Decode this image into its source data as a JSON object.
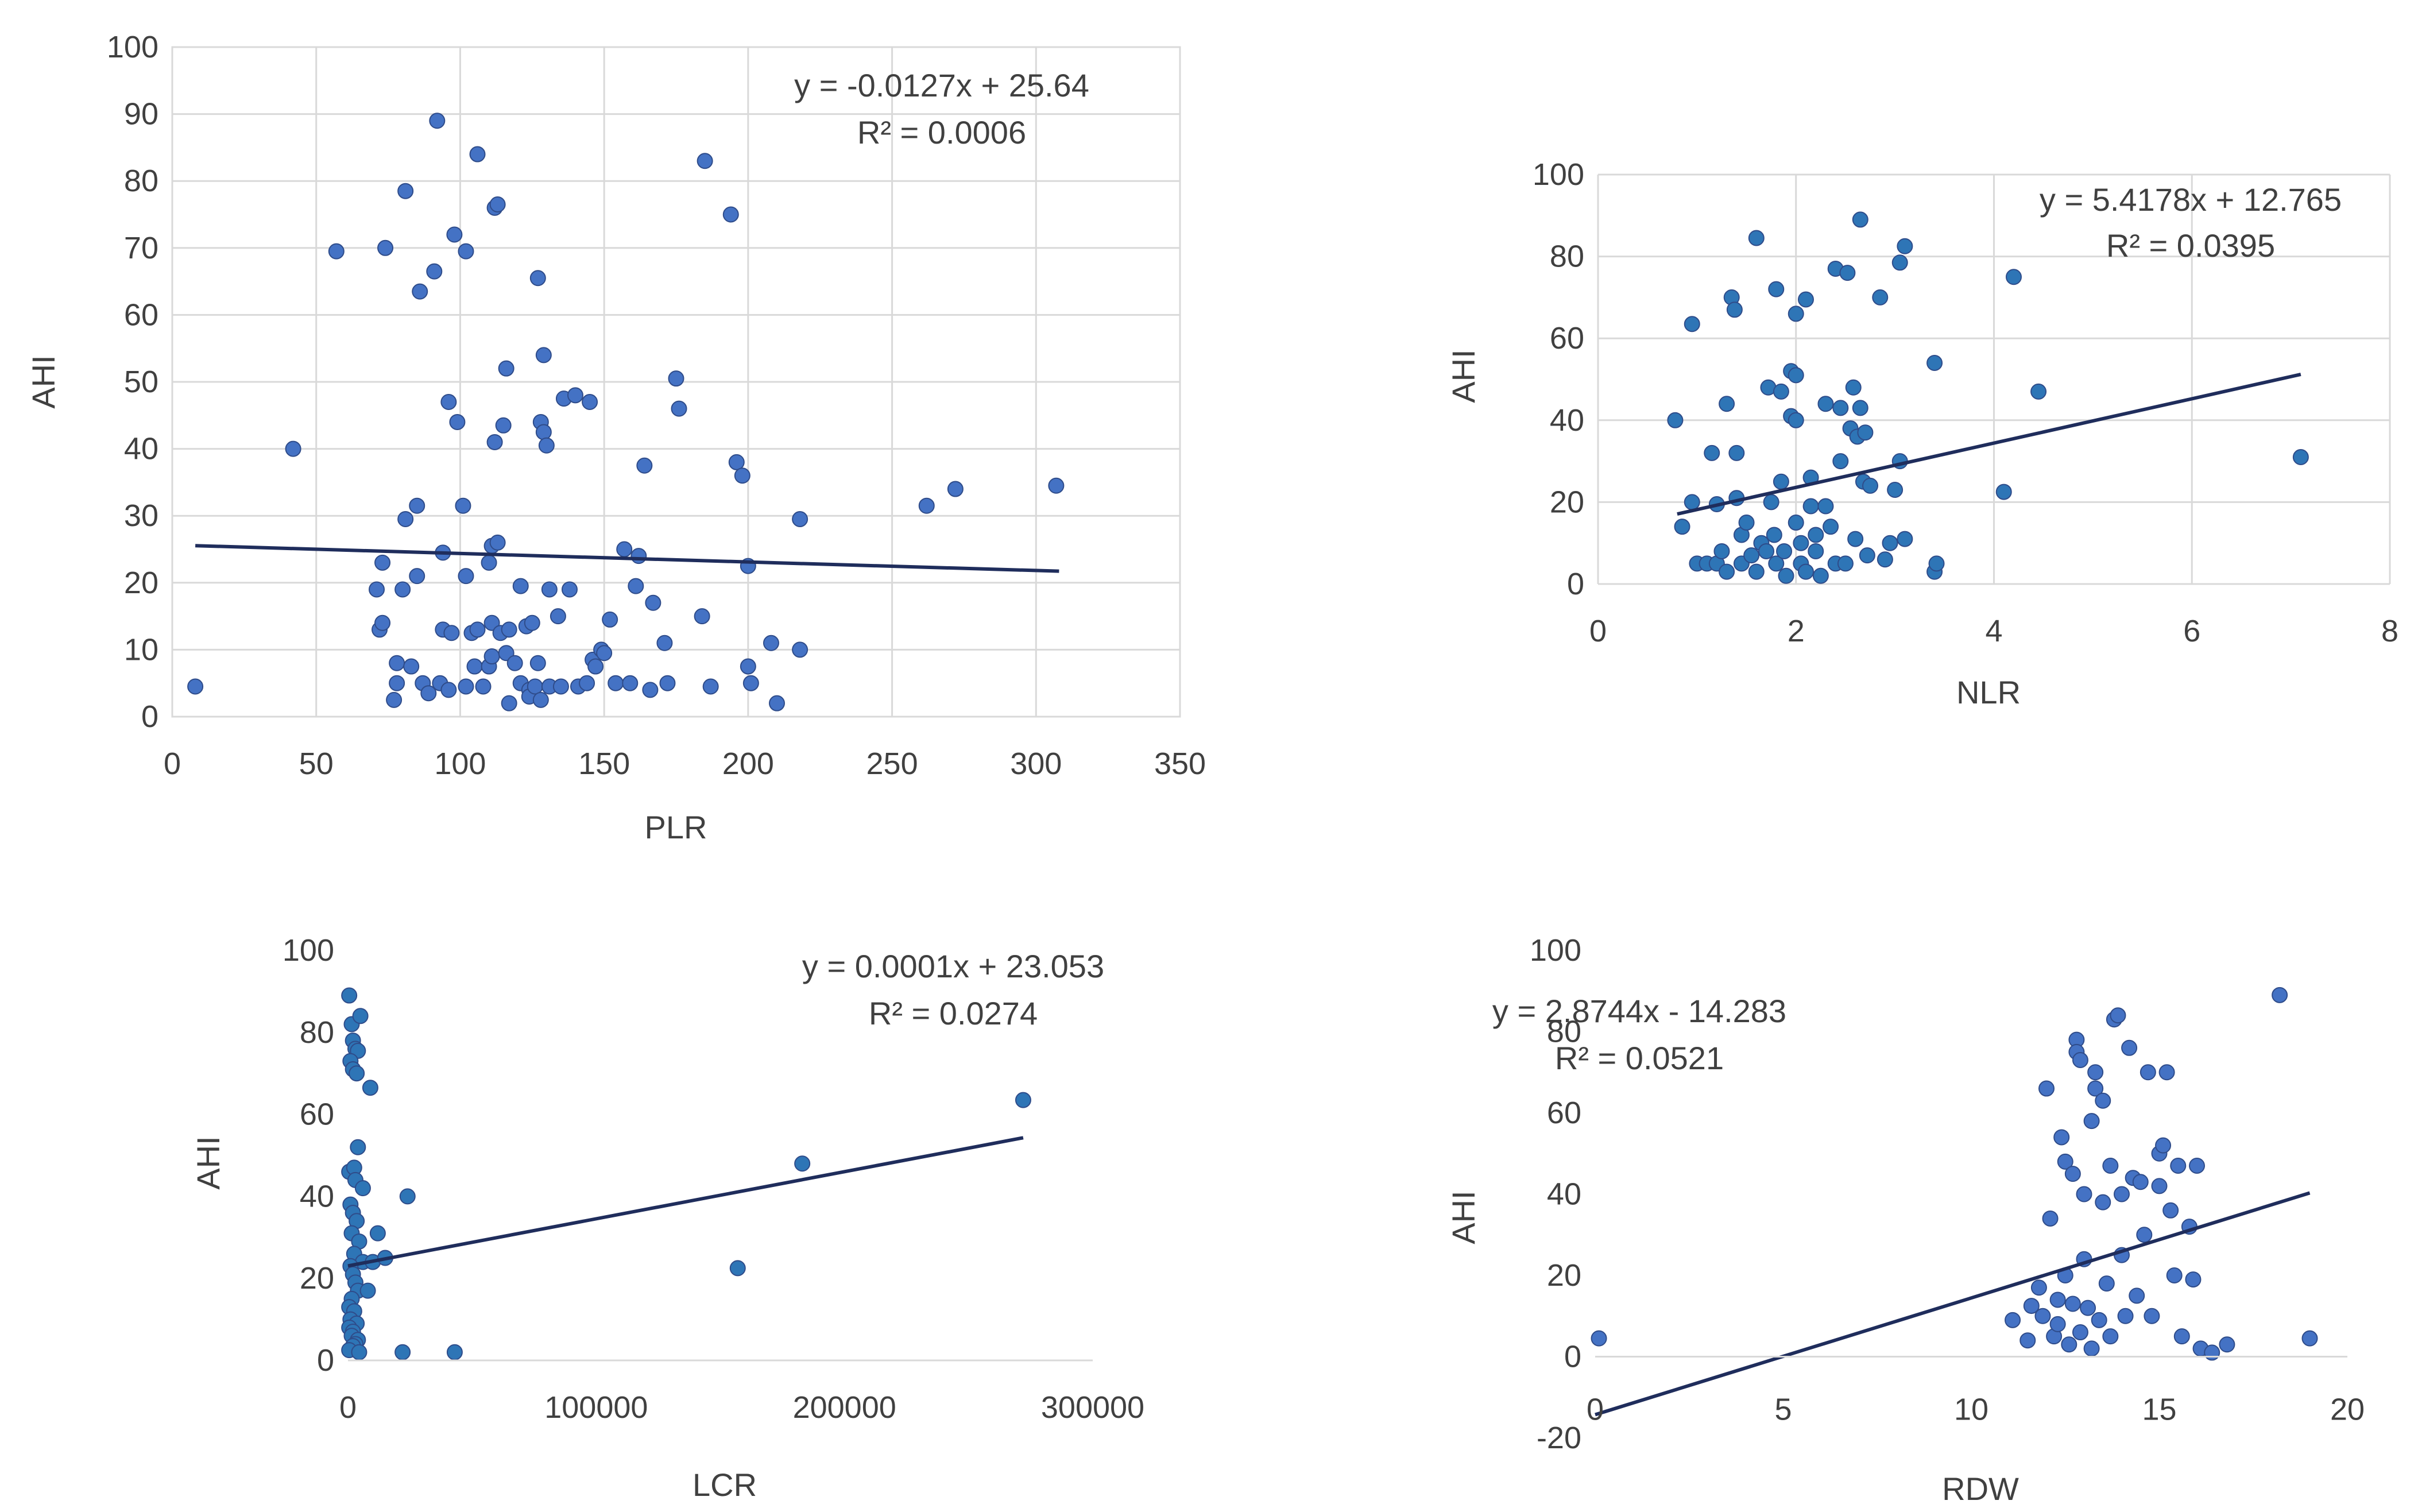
{
  "chart_data": [
    {
      "id": "plr",
      "type": "scatter",
      "xlabel": "PLR",
      "ylabel": "AHI",
      "xlim": [
        0,
        350
      ],
      "ylim": [
        0,
        100
      ],
      "xticks": [
        0,
        50,
        100,
        150,
        200,
        250,
        300,
        350
      ],
      "yticks": [
        0,
        10,
        20,
        30,
        40,
        50,
        60,
        70,
        80,
        90,
        100
      ],
      "grid": true,
      "marker_color": "#4472C4",
      "line_color": "#1F2D5C",
      "equation": "y = -0.0127x + 25.64",
      "r2": "R² = 0.0006",
      "trendline": {
        "x": [
          8,
          308
        ],
        "y": [
          25.54,
          21.73
        ]
      },
      "points": [
        [
          8,
          4.5
        ],
        [
          42,
          40
        ],
        [
          57,
          69.5
        ],
        [
          74,
          70
        ],
        [
          73,
          23
        ],
        [
          71,
          19
        ],
        [
          72,
          13
        ],
        [
          73,
          14
        ],
        [
          77,
          2.5
        ],
        [
          78,
          8
        ],
        [
          78,
          5
        ],
        [
          80,
          19
        ],
        [
          81,
          78.5
        ],
        [
          81,
          29.5
        ],
        [
          83,
          7.5
        ],
        [
          85,
          31.5
        ],
        [
          86,
          63.5
        ],
        [
          85,
          21
        ],
        [
          87,
          5
        ],
        [
          89,
          3.5
        ],
        [
          91,
          66.5
        ],
        [
          92,
          89
        ],
        [
          93,
          5
        ],
        [
          94,
          24.5
        ],
        [
          94,
          13
        ],
        [
          96,
          47
        ],
        [
          96,
          4
        ],
        [
          98,
          72
        ],
        [
          97,
          12.5
        ],
        [
          99,
          44
        ],
        [
          101,
          31.5
        ],
        [
          102,
          69.5
        ],
        [
          102,
          21
        ],
        [
          102,
          4.5
        ],
        [
          104,
          12.5
        ],
        [
          105,
          7.5
        ],
        [
          106,
          84
        ],
        [
          106,
          13
        ],
        [
          108,
          4.5
        ],
        [
          110,
          7.5
        ],
        [
          110,
          23
        ],
        [
          111,
          9
        ],
        [
          111,
          25.5
        ],
        [
          111,
          14
        ],
        [
          112,
          41
        ],
        [
          112,
          76
        ],
        [
          113,
          76.5
        ],
        [
          113,
          26
        ],
        [
          114,
          12.5
        ],
        [
          115,
          43.5
        ],
        [
          116,
          52
        ],
        [
          116,
          9.5
        ],
        [
          117,
          2
        ],
        [
          117,
          13
        ],
        [
          119,
          8
        ],
        [
          121,
          19.5
        ],
        [
          121,
          5
        ],
        [
          123,
          13.5
        ],
        [
          124,
          4
        ],
        [
          124,
          3
        ],
        [
          125,
          14
        ],
        [
          126,
          4.5
        ],
        [
          127,
          65.5
        ],
        [
          127,
          8
        ],
        [
          128,
          2.5
        ],
        [
          128,
          44
        ],
        [
          129,
          42.5
        ],
        [
          130,
          40.5
        ],
        [
          129,
          54
        ],
        [
          131,
          19
        ],
        [
          131,
          4.5
        ],
        [
          134,
          15
        ],
        [
          135,
          4.5
        ],
        [
          136,
          47.5
        ],
        [
          138,
          19
        ],
        [
          140,
          48
        ],
        [
          141,
          4.5
        ],
        [
          144,
          5
        ],
        [
          145,
          47
        ],
        [
          146,
          8.5
        ],
        [
          147,
          7.5
        ],
        [
          149,
          10
        ],
        [
          150,
          9.5
        ],
        [
          152,
          14.5
        ],
        [
          154,
          5
        ],
        [
          157,
          25
        ],
        [
          159,
          5
        ],
        [
          161,
          19.5
        ],
        [
          162,
          24
        ],
        [
          164,
          37.5
        ],
        [
          166,
          4
        ],
        [
          167,
          17
        ],
        [
          171,
          11
        ],
        [
          172,
          5
        ],
        [
          175,
          50.5
        ],
        [
          176,
          46
        ],
        [
          184,
          15
        ],
        [
          185,
          83
        ],
        [
          187,
          4.5
        ],
        [
          194,
          75
        ],
        [
          196,
          38
        ],
        [
          198,
          36
        ],
        [
          200,
          22.5
        ],
        [
          200,
          7.5
        ],
        [
          201,
          5
        ],
        [
          208,
          11
        ],
        [
          210,
          2
        ],
        [
          218,
          29.5
        ],
        [
          218,
          10
        ],
        [
          262,
          31.5
        ],
        [
          272,
          34
        ],
        [
          307,
          34.5
        ]
      ]
    },
    {
      "id": "nlr",
      "type": "scatter",
      "xlabel": "NLR",
      "ylabel": "AHI",
      "xlim": [
        0,
        8
      ],
      "ylim": [
        0,
        100
      ],
      "xticks": [
        0,
        2,
        4,
        6,
        8
      ],
      "yticks": [
        0,
        20,
        40,
        60,
        80,
        100
      ],
      "grid": true,
      "marker_color": "#2E75B6",
      "line_color": "#1F2D5C",
      "equation": "y = 5.4178x + 12.765",
      "r2": "R² = 0.0395",
      "trendline": {
        "x": [
          0.8,
          7.1
        ],
        "y": [
          17.1,
          51.2
        ]
      },
      "points": [
        [
          0.78,
          40
        ],
        [
          0.95,
          63.5
        ],
        [
          0.85,
          14
        ],
        [
          0.95,
          20
        ],
        [
          1.0,
          5
        ],
        [
          1.1,
          5
        ],
        [
          1.15,
          32
        ],
        [
          1.2,
          19.5
        ],
        [
          1.2,
          5
        ],
        [
          1.25,
          8
        ],
        [
          1.3,
          3
        ],
        [
          1.3,
          44
        ],
        [
          1.35,
          70
        ],
        [
          1.38,
          67
        ],
        [
          1.4,
          32
        ],
        [
          1.4,
          21
        ],
        [
          1.45,
          12
        ],
        [
          1.45,
          5
        ],
        [
          1.5,
          15
        ],
        [
          1.55,
          7
        ],
        [
          1.6,
          84.5
        ],
        [
          1.6,
          3
        ],
        [
          1.65,
          10
        ],
        [
          1.7,
          8
        ],
        [
          1.72,
          48
        ],
        [
          1.75,
          20
        ],
        [
          1.78,
          12
        ],
        [
          1.8,
          72
        ],
        [
          1.8,
          5
        ],
        [
          1.85,
          47
        ],
        [
          1.85,
          25
        ],
        [
          1.88,
          8
        ],
        [
          1.9,
          2
        ],
        [
          1.95,
          52
        ],
        [
          1.95,
          41
        ],
        [
          2.0,
          66
        ],
        [
          2.0,
          51
        ],
        [
          2.0,
          40
        ],
        [
          2.0,
          15
        ],
        [
          2.05,
          10
        ],
        [
          2.05,
          5
        ],
        [
          2.1,
          69.5
        ],
        [
          2.1,
          3
        ],
        [
          2.15,
          26
        ],
        [
          2.15,
          19
        ],
        [
          2.2,
          12
        ],
        [
          2.2,
          8
        ],
        [
          2.25,
          2
        ],
        [
          2.3,
          44
        ],
        [
          2.3,
          19
        ],
        [
          2.35,
          14
        ],
        [
          2.4,
          77
        ],
        [
          2.4,
          5
        ],
        [
          2.45,
          43
        ],
        [
          2.45,
          30
        ],
        [
          2.5,
          5
        ],
        [
          2.52,
          76
        ],
        [
          2.55,
          38
        ],
        [
          2.58,
          48
        ],
        [
          2.6,
          11
        ],
        [
          2.62,
          36
        ],
        [
          2.65,
          89
        ],
        [
          2.65,
          43
        ],
        [
          2.68,
          25
        ],
        [
          2.7,
          37
        ],
        [
          2.72,
          7
        ],
        [
          2.75,
          24
        ],
        [
          2.85,
          70
        ],
        [
          2.9,
          6
        ],
        [
          2.95,
          10
        ],
        [
          3.0,
          23
        ],
        [
          3.05,
          78.5
        ],
        [
          3.05,
          30
        ],
        [
          3.1,
          82.5
        ],
        [
          3.1,
          11
        ],
        [
          3.4,
          54
        ],
        [
          3.4,
          3
        ],
        [
          3.42,
          5
        ],
        [
          4.1,
          22.5
        ],
        [
          4.2,
          75
        ],
        [
          4.45,
          47
        ],
        [
          7.1,
          31
        ]
      ]
    },
    {
      "id": "lcr",
      "type": "scatter",
      "xlabel": "LCR",
      "ylabel": "AHI",
      "xlim": [
        0,
        300000
      ],
      "ylim": [
        0,
        100
      ],
      "xticks": [
        0,
        100000,
        200000,
        300000
      ],
      "yticks": [
        0,
        20,
        40,
        60,
        80,
        100
      ],
      "grid": false,
      "marker_color": "#2E75B6",
      "line_color": "#1F2D5C",
      "equation": "y = 0.0001x + 23.053",
      "r2": "R² = 0.0274",
      "trendline": {
        "x": [
          0,
          272000
        ],
        "y": [
          23.05,
          54.3
        ]
      },
      "points": [
        [
          500,
          89
        ],
        [
          1500,
          82
        ],
        [
          2000,
          78
        ],
        [
          3000,
          76
        ],
        [
          4000,
          75.5
        ],
        [
          1000,
          73
        ],
        [
          2000,
          71
        ],
        [
          3500,
          70
        ],
        [
          5000,
          84
        ],
        [
          9000,
          66.5
        ],
        [
          500,
          46
        ],
        [
          2500,
          47
        ],
        [
          4000,
          52
        ],
        [
          3000,
          44
        ],
        [
          6000,
          42
        ],
        [
          1000,
          38
        ],
        [
          2000,
          36
        ],
        [
          3500,
          34
        ],
        [
          1500,
          31
        ],
        [
          4500,
          29
        ],
        [
          2500,
          26
        ],
        [
          6000,
          24
        ],
        [
          1000,
          23
        ],
        [
          2000,
          21
        ],
        [
          3000,
          19
        ],
        [
          4000,
          17
        ],
        [
          1500,
          15
        ],
        [
          500,
          13
        ],
        [
          2500,
          12
        ],
        [
          1000,
          10
        ],
        [
          3500,
          9
        ],
        [
          500,
          8
        ],
        [
          2000,
          7
        ],
        [
          1500,
          6
        ],
        [
          4000,
          5
        ],
        [
          3000,
          4
        ],
        [
          2000,
          3.5
        ],
        [
          500,
          2.5
        ],
        [
          4500,
          2
        ],
        [
          8000,
          17
        ],
        [
          10000,
          24
        ],
        [
          12000,
          31
        ],
        [
          15000,
          25
        ],
        [
          24000,
          40
        ],
        [
          22000,
          2
        ],
        [
          43000,
          2
        ],
        [
          157000,
          22.5
        ],
        [
          183000,
          48
        ],
        [
          272000,
          63.5
        ]
      ]
    },
    {
      "id": "rdw",
      "type": "scatter",
      "xlabel": "RDW",
      "ylabel": "AHI",
      "xlim": [
        0,
        20
      ],
      "ylim": [
        -20,
        100
      ],
      "xticks": [
        0,
        5,
        10,
        15,
        20
      ],
      "yticks": [
        -20,
        0,
        20,
        40,
        60,
        80,
        100
      ],
      "grid": false,
      "marker_color": "#4472C4",
      "line_color": "#1F2D5C",
      "equation": "y = 2.8744x - 14.283",
      "r2": "R² = 0.0521",
      "trendline": {
        "x": [
          0,
          19
        ],
        "y": [
          -14.28,
          40.3
        ]
      },
      "points": [
        [
          0.1,
          4.5
        ],
        [
          11.1,
          9
        ],
        [
          11.5,
          4
        ],
        [
          11.6,
          12.5
        ],
        [
          11.8,
          17
        ],
        [
          11.9,
          10
        ],
        [
          12.0,
          66
        ],
        [
          12.1,
          34
        ],
        [
          12.2,
          5
        ],
        [
          12.3,
          14
        ],
        [
          12.3,
          8
        ],
        [
          12.4,
          54
        ],
        [
          12.5,
          48
        ],
        [
          12.5,
          20
        ],
        [
          12.6,
          3
        ],
        [
          12.7,
          45
        ],
        [
          12.7,
          13
        ],
        [
          12.8,
          78
        ],
        [
          12.8,
          75
        ],
        [
          12.9,
          73
        ],
        [
          12.9,
          6
        ],
        [
          13.0,
          40
        ],
        [
          13.0,
          24
        ],
        [
          13.1,
          12
        ],
        [
          13.2,
          58
        ],
        [
          13.2,
          2
        ],
        [
          13.3,
          70
        ],
        [
          13.3,
          66
        ],
        [
          13.4,
          9
        ],
        [
          13.5,
          63
        ],
        [
          13.5,
          38
        ],
        [
          13.6,
          18
        ],
        [
          13.7,
          47
        ],
        [
          13.7,
          5
        ],
        [
          13.8,
          83
        ],
        [
          13.9,
          84
        ],
        [
          14.0,
          40
        ],
        [
          14.0,
          25
        ],
        [
          14.1,
          10
        ],
        [
          14.2,
          76
        ],
        [
          14.3,
          44
        ],
        [
          14.4,
          15
        ],
        [
          14.5,
          43
        ],
        [
          14.6,
          30
        ],
        [
          14.7,
          70
        ],
        [
          14.8,
          10
        ],
        [
          15.0,
          50
        ],
        [
          15.0,
          42
        ],
        [
          15.1,
          52
        ],
        [
          15.2,
          70
        ],
        [
          15.3,
          36
        ],
        [
          15.4,
          20
        ],
        [
          15.5,
          47
        ],
        [
          15.6,
          5
        ],
        [
          15.8,
          32
        ],
        [
          15.9,
          19
        ],
        [
          16.0,
          47
        ],
        [
          16.1,
          2
        ],
        [
          16.4,
          1
        ],
        [
          16.8,
          3
        ],
        [
          18.2,
          89
        ],
        [
          19.0,
          4.5
        ]
      ]
    }
  ]
}
